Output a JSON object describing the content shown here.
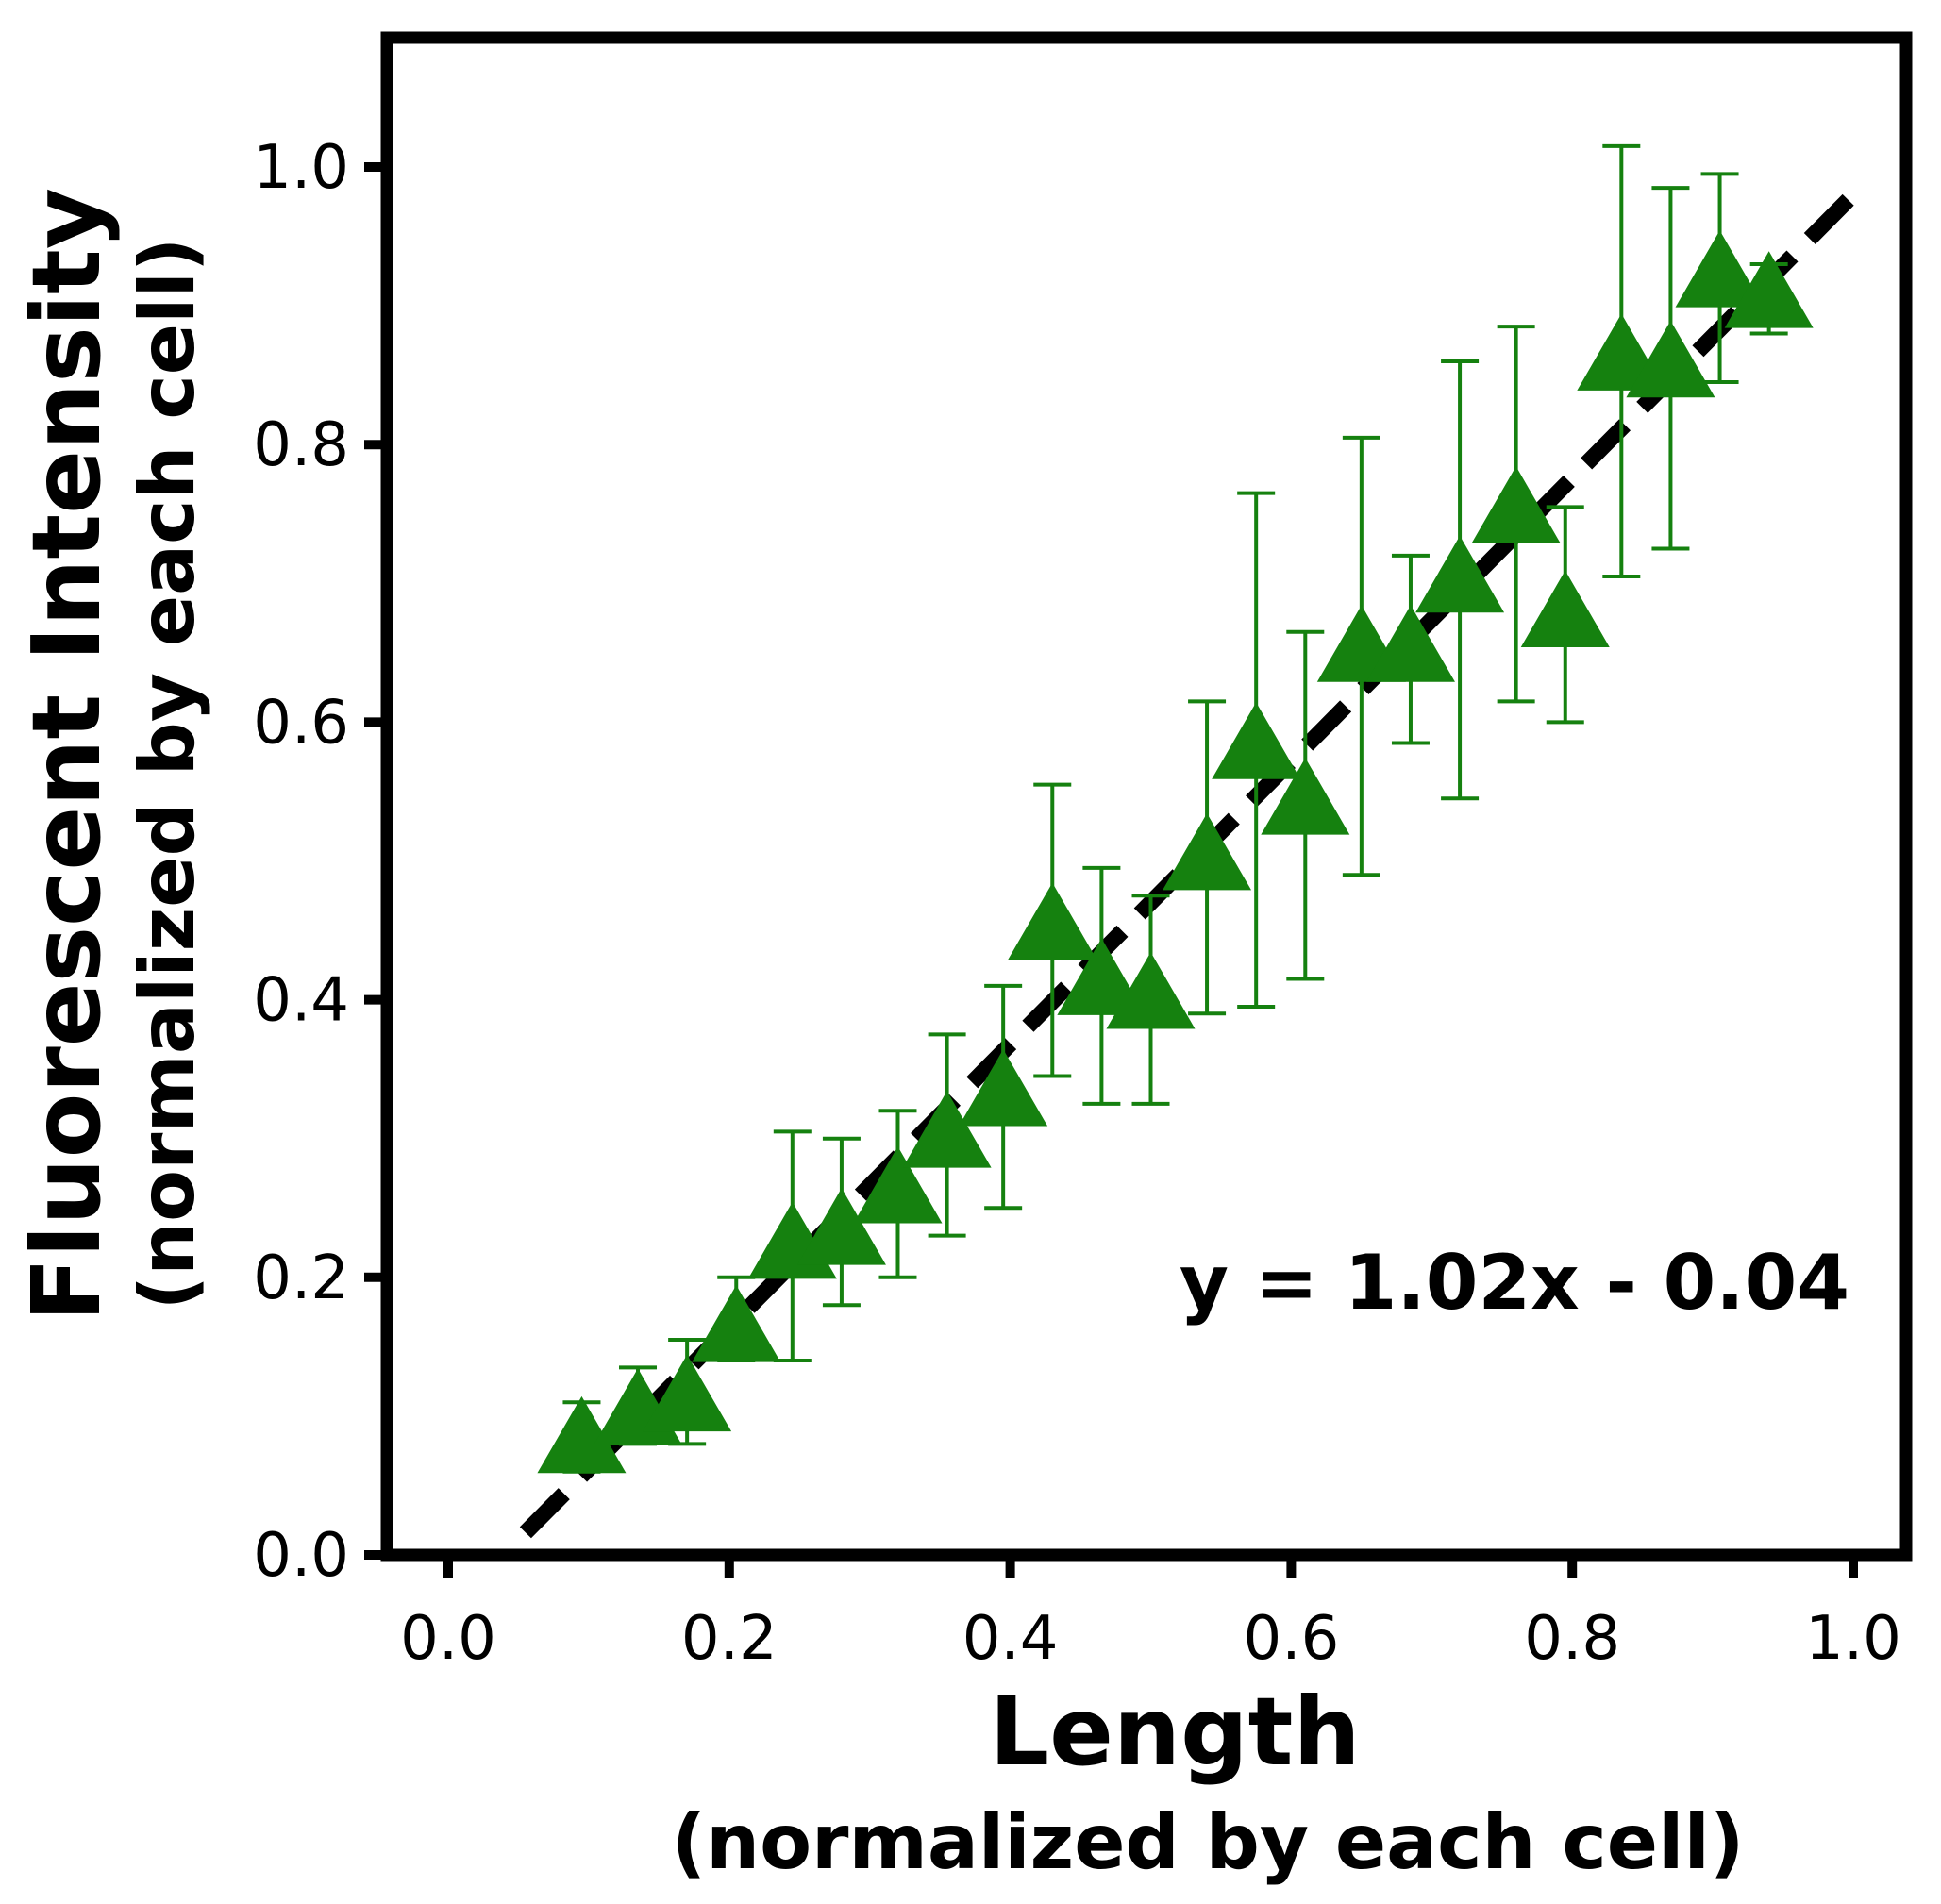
{
  "chart_data": {
    "type": "scatter",
    "title": "",
    "xlabel": "Length",
    "xlabel_sub": "(normalized by each cell)",
    "ylabel": "Fluorescent Intensity",
    "ylabel_sub": "(normalized by each cell)",
    "xlim": [
      -0.05,
      1.05
    ],
    "ylim": [
      0.0,
      1.1
    ],
    "x_ticks": [
      "0.0",
      "0.2",
      "0.4",
      "0.6",
      "0.8",
      "1.0"
    ],
    "y_ticks": [
      "0.0",
      "0.2",
      "0.4",
      "0.6",
      "0.8",
      "1.0"
    ],
    "grid": false,
    "legend": "none",
    "marker": "triangle",
    "marker_color": "#15810f",
    "fit_line": {
      "slope": 1.02,
      "intercept": -0.04,
      "x_range": [
        0.055,
        1.0
      ],
      "style": "dashed",
      "color": "#000000",
      "label": "y = 1.02x - 0.04"
    },
    "series": [
      {
        "points": [
          {
            "x": 0.095,
            "y": 0.08,
            "err_low": 0.02,
            "err_high": 0.03
          },
          {
            "x": 0.135,
            "y": 0.1,
            "err_low": 0.02,
            "err_high": 0.035
          },
          {
            "x": 0.17,
            "y": 0.11,
            "err_low": 0.03,
            "err_high": 0.045
          },
          {
            "x": 0.205,
            "y": 0.16,
            "err_low": 0.02,
            "err_high": 0.04
          },
          {
            "x": 0.245,
            "y": 0.22,
            "err_low": 0.08,
            "err_high": 0.085
          },
          {
            "x": 0.28,
            "y": 0.23,
            "err_low": 0.05,
            "err_high": 0.07
          },
          {
            "x": 0.32,
            "y": 0.26,
            "err_low": 0.06,
            "err_high": 0.06
          },
          {
            "x": 0.355,
            "y": 0.3,
            "err_low": 0.07,
            "err_high": 0.075
          },
          {
            "x": 0.395,
            "y": 0.33,
            "err_low": 0.08,
            "err_high": 0.08
          },
          {
            "x": 0.43,
            "y": 0.45,
            "err_low": 0.105,
            "err_high": 0.105
          },
          {
            "x": 0.465,
            "y": 0.41,
            "err_low": 0.085,
            "err_high": 0.085
          },
          {
            "x": 0.5,
            "y": 0.4,
            "err_low": 0.075,
            "err_high": 0.075
          },
          {
            "x": 0.54,
            "y": 0.5,
            "err_low": 0.11,
            "err_high": 0.115
          },
          {
            "x": 0.575,
            "y": 0.58,
            "err_low": 0.185,
            "err_high": 0.185
          },
          {
            "x": 0.61,
            "y": 0.54,
            "err_low": 0.125,
            "err_high": 0.125
          },
          {
            "x": 0.65,
            "y": 0.65,
            "err_low": 0.16,
            "err_high": 0.155
          },
          {
            "x": 0.685,
            "y": 0.65,
            "err_low": 0.065,
            "err_high": 0.07
          },
          {
            "x": 0.72,
            "y": 0.7,
            "err_low": 0.155,
            "err_high": 0.16
          },
          {
            "x": 0.76,
            "y": 0.75,
            "err_low": 0.135,
            "err_high": 0.135
          },
          {
            "x": 0.795,
            "y": 0.675,
            "err_low": 0.075,
            "err_high": 0.08
          },
          {
            "x": 0.835,
            "y": 0.86,
            "err_low": 0.155,
            "err_high": 0.155
          },
          {
            "x": 0.87,
            "y": 0.855,
            "err_low": 0.13,
            "err_high": 0.13
          },
          {
            "x": 0.905,
            "y": 0.92,
            "err_low": 0.075,
            "err_high": 0.075
          },
          {
            "x": 0.94,
            "y": 0.905,
            "err_low": 0.025,
            "err_high": 0.025
          }
        ]
      }
    ]
  }
}
